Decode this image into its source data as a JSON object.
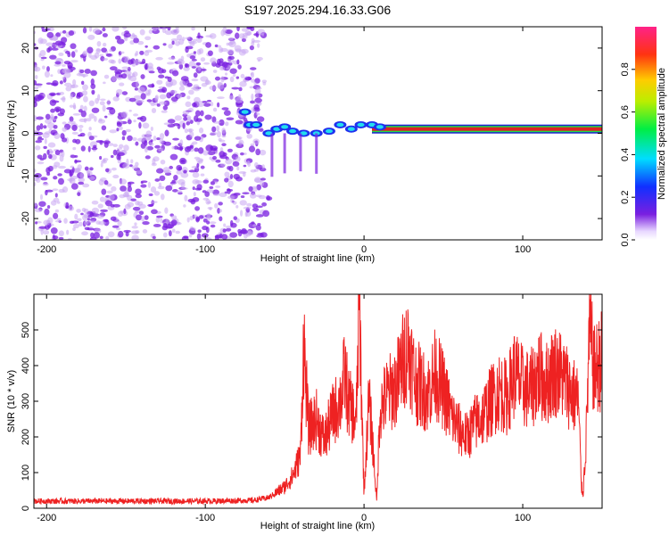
{
  "title": "S197.2025.294.16.33.G06",
  "colors": {
    "snr_line": "#ee2222",
    "band_core": "#dd2222",
    "band_halo": "#22dd44",
    "dots": "#7a1fe0",
    "dots_light": "#c9a6f2"
  },
  "chart_data": [
    {
      "type": "heatmap",
      "name": "spectrogram",
      "xlabel": "Height of straight line (km)",
      "ylabel": "Frequency (Hz)",
      "xlim": [
        -208,
        150
      ],
      "ylim": [
        -25,
        25
      ],
      "xticks": [
        -200,
        -100,
        0,
        100
      ],
      "yticks": [
        -20,
        -10,
        0,
        10,
        20
      ],
      "colorbar": {
        "label": "Normalized spectral amplitude",
        "range": [
          0,
          1
        ],
        "ticks": [
          "0.0",
          "0.2",
          "0.4",
          "0.6",
          "0.8"
        ],
        "tick_values": [
          0.0,
          0.2,
          0.4,
          0.6,
          0.8
        ]
      },
      "dominant_frequency_hz": 1.0,
      "noise_region_km": [
        -208,
        -65
      ]
    },
    {
      "type": "line",
      "name": "snr",
      "xlabel": "Height of straight line (km)",
      "ylabel": "SNR (10 * v/v)",
      "xlim": [
        -208,
        150
      ],
      "ylim": [
        0,
        600
      ],
      "xticks": [
        -200,
        -100,
        0,
        100
      ],
      "yticks": [
        0,
        100,
        200,
        300,
        400,
        500
      ],
      "series": [
        {
          "name": "SNR",
          "x": [
            -208,
            -150,
            -100,
            -70,
            -60,
            -50,
            -45,
            -40,
            -38,
            -35,
            -30,
            -25,
            -20,
            -15,
            -12,
            -10,
            -7,
            -5,
            -3,
            0,
            3,
            5,
            8,
            10,
            15,
            20,
            25,
            28,
            32,
            40,
            45,
            50,
            55,
            60,
            65,
            70,
            75,
            80,
            85,
            90,
            95,
            100,
            105,
            110,
            115,
            120,
            125,
            130,
            135,
            137,
            138,
            140,
            142,
            145,
            150
          ],
          "y": [
            20,
            20,
            20,
            22,
            30,
            60,
            90,
            150,
            470,
            220,
            250,
            190,
            260,
            300,
            380,
            300,
            270,
            230,
            590,
            40,
            300,
            210,
            20,
            280,
            320,
            340,
            420,
            455,
            360,
            320,
            380,
            330,
            260,
            220,
            200,
            240,
            260,
            300,
            330,
            310,
            380,
            340,
            330,
            380,
            350,
            390,
            370,
            330,
            300,
            60,
            40,
            200,
            500,
            380,
            420
          ]
        }
      ]
    }
  ]
}
